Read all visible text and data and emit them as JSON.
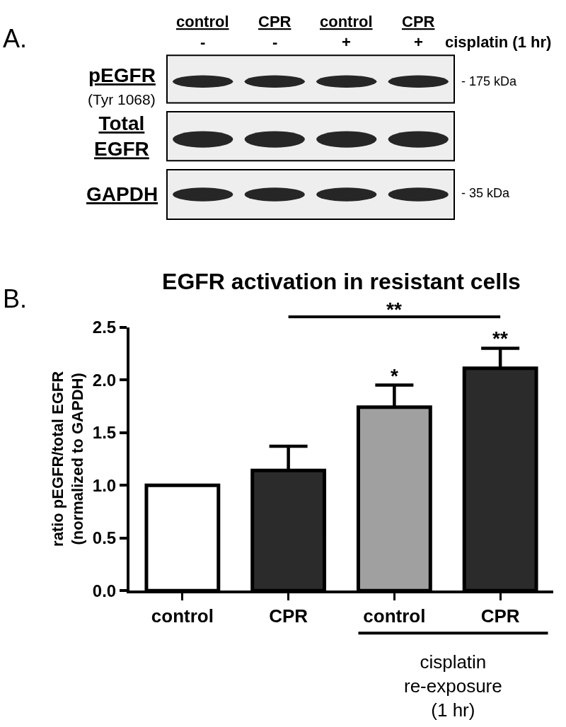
{
  "chart_data": [
    {
      "type": "other",
      "categories": [
        "control",
        "CPR",
        "control",
        "CPR"
      ],
      "annotations": [
        "A.",
        "-",
        "-",
        "+",
        "+",
        "cisplatin (1 hr)",
        "pEGFR",
        "(Tyr 1068)",
        "Total\nEGFR",
        "GAPDH",
        "- 175 kDa",
        "- 35 kDa"
      ]
    },
    {
      "type": "bar",
      "title": "EGFR activation in resistant cells",
      "ylabel": "ratio pEGFR/total EGFR\n(normalized to GAPDH)",
      "categories": [
        "control",
        "CPR",
        "control",
        "CPR"
      ],
      "values": [
        1.0,
        1.14,
        1.74,
        2.11
      ],
      "colors": [
        "#ffffff",
        "#2b2b2b",
        "#a0a0a0",
        "#2b2b2b"
      ],
      "errors": [
        null,
        [
          1.14,
          1.37
        ],
        [
          1.74,
          1.95
        ],
        [
          2.11,
          2.3
        ]
      ],
      "ylim": [
        0,
        2.5
      ],
      "yticks": [
        {
          "value": 0,
          "label": "0.0"
        },
        0.5,
        {
          "value": 1,
          "label": "1.0"
        },
        1.5,
        {
          "value": 2,
          "label": "2.0"
        },
        2.5
      ],
      "annotations": [
        "B.",
        "**",
        "*",
        "**",
        "cisplatin\nre-exposure\n(1 hr)"
      ]
    }
  ]
}
